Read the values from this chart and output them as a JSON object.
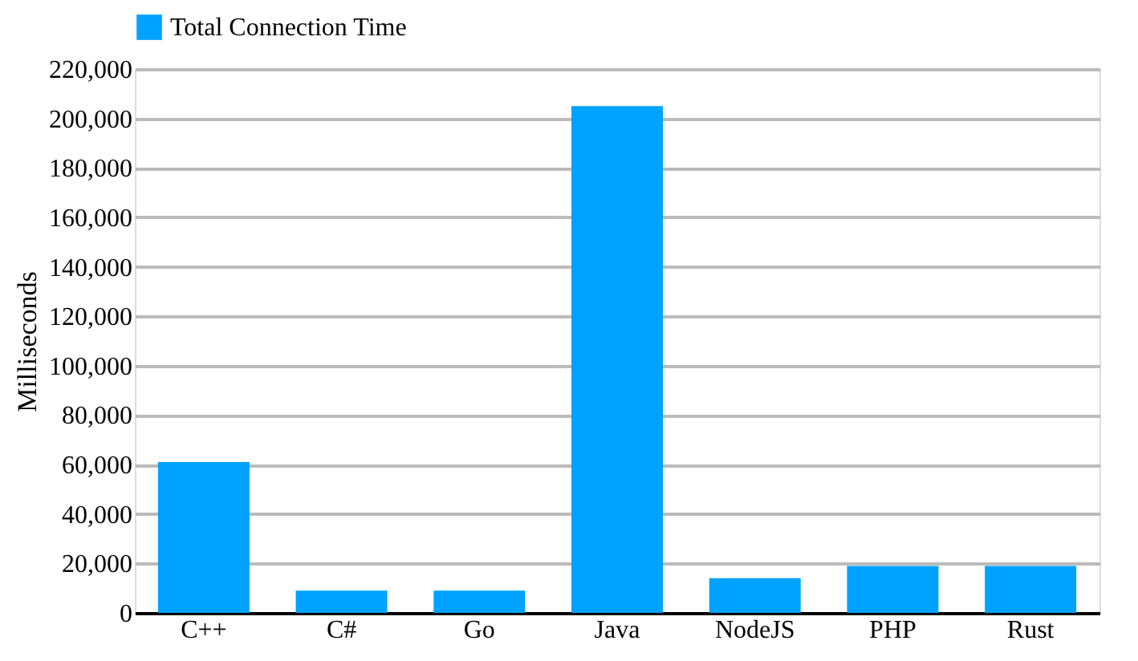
{
  "chart_data": {
    "type": "bar",
    "categories": [
      "C++",
      "C#",
      "Go",
      "Java",
      "NodeJS",
      "PHP",
      "Rust"
    ],
    "series": [
      {
        "name": "Total Connection Time",
        "color": "#00a2ff",
        "values": [
          61000,
          9000,
          9000,
          205000,
          14000,
          19000,
          19000
        ]
      }
    ],
    "ylabel": "Milliseconds",
    "ylim": [
      0,
      220000
    ],
    "yticks": [
      0,
      {
        "value": 20000,
        "label": "20,000"
      },
      {
        "value": 40000,
        "label": "40,000"
      },
      {
        "value": 60000,
        "label": "60,000"
      },
      {
        "value": 80000,
        "label": "80,000"
      },
      {
        "value": 100000,
        "label": "100,000"
      },
      {
        "value": 120000,
        "label": "120,000"
      },
      {
        "value": 140000,
        "label": "140,000"
      },
      {
        "value": 160000,
        "label": "160,000"
      },
      {
        "value": 180000,
        "label": "180,000"
      },
      {
        "value": 200000,
        "label": "200,000"
      },
      {
        "value": 220000,
        "label": "220,000"
      }
    ],
    "grid": "y",
    "legend": "top"
  }
}
